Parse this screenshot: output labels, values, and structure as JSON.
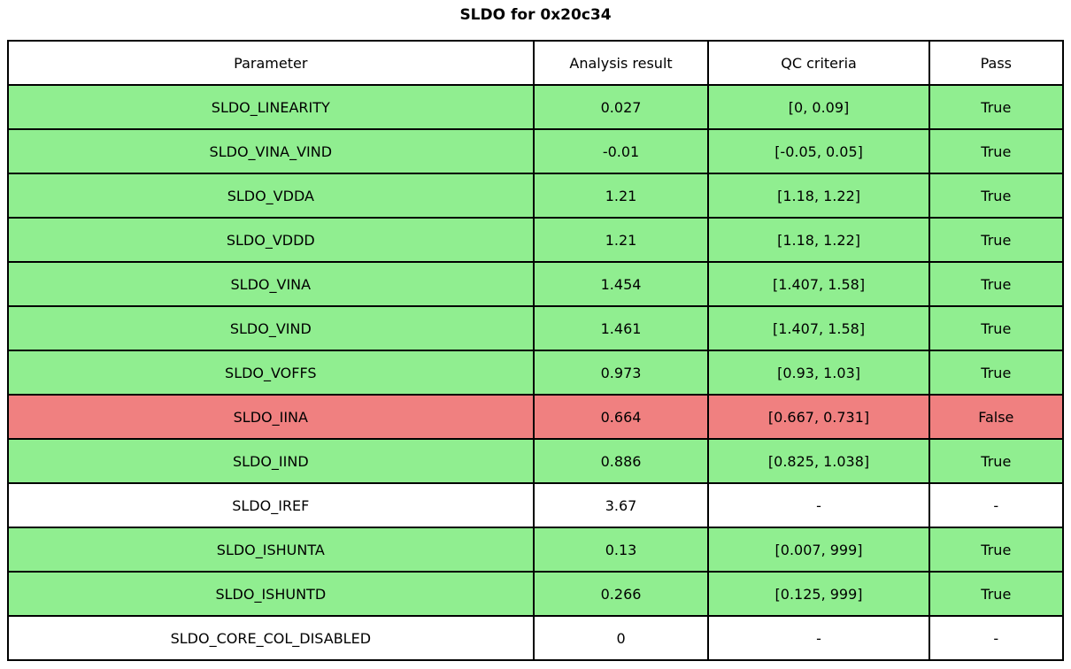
{
  "figure": {
    "title": "SLDO for 0x20c34"
  },
  "colors": {
    "pass_row": "#90EE90",
    "fail_row": "#F08080",
    "neutral_row": "#FFFFFF",
    "border": "#000000",
    "text": "#000000"
  },
  "chart_data": {
    "type": "table",
    "title": "SLDO for 0x20c34",
    "columns": [
      "Parameter",
      "Analysis result",
      "QC criteria",
      "Pass"
    ],
    "rows": [
      {
        "parameter": "SLDO_LINEARITY",
        "result": "0.027",
        "criteria": "[0, 0.09]",
        "pass": "True",
        "status": "pass"
      },
      {
        "parameter": "SLDO_VINA_VIND",
        "result": "-0.01",
        "criteria": "[-0.05, 0.05]",
        "pass": "True",
        "status": "pass"
      },
      {
        "parameter": "SLDO_VDDA",
        "result": "1.21",
        "criteria": "[1.18, 1.22]",
        "pass": "True",
        "status": "pass"
      },
      {
        "parameter": "SLDO_VDDD",
        "result": "1.21",
        "criteria": "[1.18, 1.22]",
        "pass": "True",
        "status": "pass"
      },
      {
        "parameter": "SLDO_VINA",
        "result": "1.454",
        "criteria": "[1.407, 1.58]",
        "pass": "True",
        "status": "pass"
      },
      {
        "parameter": "SLDO_VIND",
        "result": "1.461",
        "criteria": "[1.407, 1.58]",
        "pass": "True",
        "status": "pass"
      },
      {
        "parameter": "SLDO_VOFFS",
        "result": "0.973",
        "criteria": "[0.93, 1.03]",
        "pass": "True",
        "status": "pass"
      },
      {
        "parameter": "SLDO_IINA",
        "result": "0.664",
        "criteria": "[0.667, 0.731]",
        "pass": "False",
        "status": "fail"
      },
      {
        "parameter": "SLDO_IIND",
        "result": "0.886",
        "criteria": "[0.825, 1.038]",
        "pass": "True",
        "status": "pass"
      },
      {
        "parameter": "SLDO_IREF",
        "result": "3.67",
        "criteria": "-",
        "pass": "-",
        "status": "none"
      },
      {
        "parameter": "SLDO_ISHUNTA",
        "result": "0.13",
        "criteria": "[0.007, 999]",
        "pass": "True",
        "status": "pass"
      },
      {
        "parameter": "SLDO_ISHUNTD",
        "result": "0.266",
        "criteria": "[0.125, 999]",
        "pass": "True",
        "status": "pass"
      },
      {
        "parameter": "SLDO_CORE_COL_DISABLED",
        "result": "0",
        "criteria": "-",
        "pass": "-",
        "status": "none"
      }
    ]
  }
}
